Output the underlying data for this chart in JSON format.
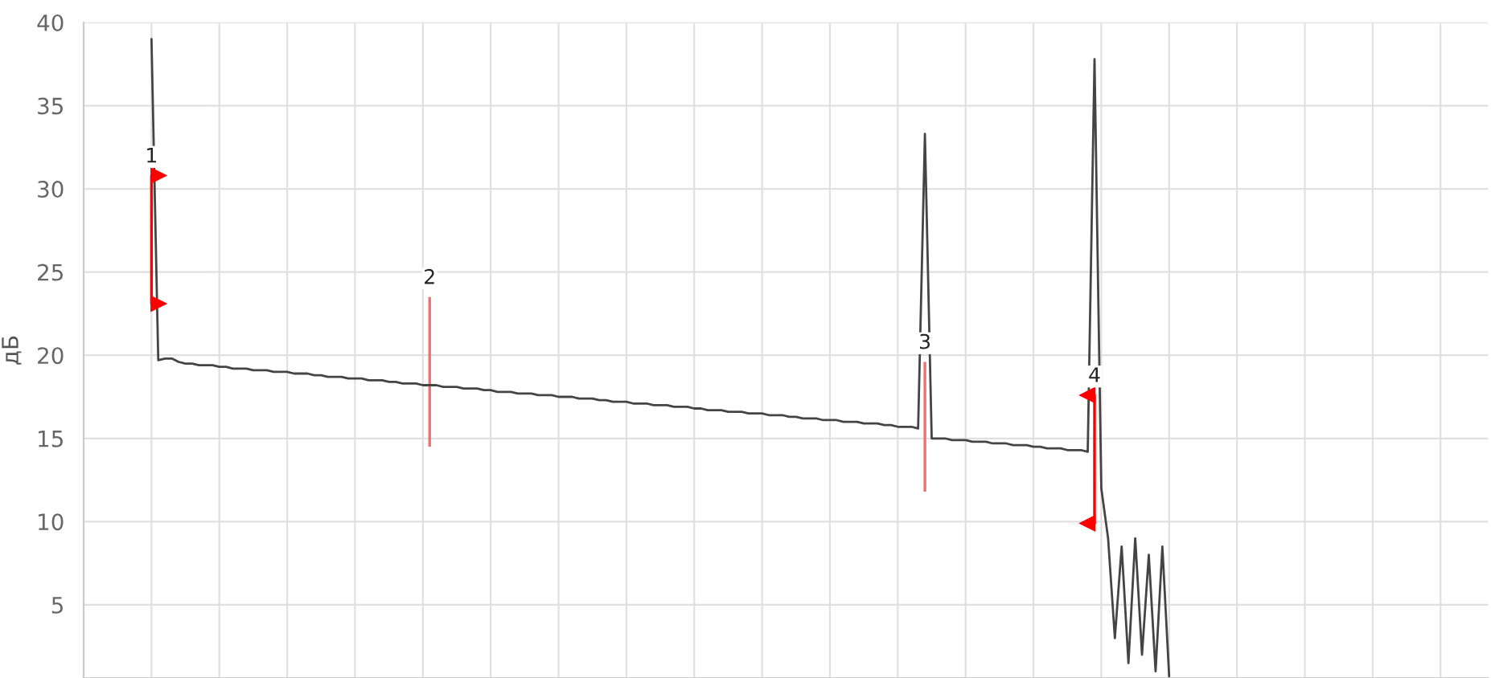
{
  "chart_data": {
    "type": "line",
    "ylabel": "дБ",
    "ylim": [
      0.6,
      40
    ],
    "yticks": [
      5,
      10,
      15,
      20,
      25,
      30,
      35,
      40
    ],
    "grid": true,
    "tick_labels": "y",
    "annotations": [
      "1",
      "2",
      "3",
      "4"
    ],
    "categories": [
      null,
      null,
      null,
      null,
      null,
      null,
      null,
      null,
      null,
      null,
      null,
      null,
      null,
      null,
      null,
      null,
      null,
      null,
      null,
      null,
      null,
      null,
      null,
      null,
      null,
      null,
      null,
      null,
      null,
      null,
      null,
      null,
      null,
      null,
      null,
      null,
      null,
      null,
      null,
      null,
      null,
      null,
      null,
      null,
      null,
      null,
      null,
      null,
      null,
      null,
      null,
      null,
      null,
      null,
      null,
      null,
      null,
      null,
      null,
      null,
      null,
      null,
      null,
      null,
      null,
      null,
      null,
      null,
      null,
      null,
      null,
      null,
      null,
      null,
      null,
      null,
      null,
      null,
      null,
      null,
      null,
      null,
      null,
      null,
      null,
      null,
      null,
      null,
      null,
      null,
      null,
      null,
      null,
      null,
      null,
      null,
      null,
      null,
      null,
      null,
      null,
      null,
      null,
      null,
      null,
      null,
      null,
      null,
      null,
      null,
      null,
      null,
      null,
      null,
      null,
      null,
      null,
      null,
      null,
      null,
      null,
      null,
      null,
      null,
      null,
      null,
      null,
      null,
      null,
      null,
      null,
      null,
      null,
      null,
      null,
      null,
      null,
      null,
      null,
      null,
      null,
      null,
      null,
      null,
      null,
      null,
      null,
      null,
      null,
      null,
      null,
      null,
      null,
      null,
      null,
      null,
      null,
      null,
      null,
      null,
      null,
      null,
      null,
      null,
      null,
      null,
      null,
      null,
      null,
      null,
      null,
      null,
      null,
      null,
      null,
      null,
      null,
      null,
      null,
      null,
      null,
      null,
      null,
      null,
      null,
      null,
      null,
      null,
      null,
      null,
      null,
      null,
      null,
      null,
      null,
      null,
      null,
      null,
      null,
      null,
      null,
      null,
      null,
      null,
      null,
      null,
      null,
      null
    ],
    "series": [
      {
        "color": "#444444",
        "values": [
          null,
          null,
          null,
          null,
          null,
          null,
          null,
          null,
          null,
          null,
          39,
          19.7,
          19.8,
          19.8,
          19.6,
          19.5,
          19.5,
          19.4,
          19.4,
          19.4,
          19.3,
          19.3,
          19.2,
          19.2,
          19.2,
          19.1,
          19.1,
          19.1,
          19.0,
          19.0,
          19.0,
          18.9,
          18.9,
          18.9,
          18.8,
          18.8,
          18.7,
          18.7,
          18.7,
          18.6,
          18.6,
          18.6,
          18.5,
          18.5,
          18.5,
          18.4,
          18.4,
          18.3,
          18.3,
          18.3,
          18.2,
          18.2,
          18.2,
          18.1,
          18.1,
          18.1,
          18.0,
          18.0,
          18.0,
          17.9,
          17.9,
          17.8,
          17.8,
          17.8,
          17.7,
          17.7,
          17.7,
          17.6,
          17.6,
          17.6,
          17.5,
          17.5,
          17.5,
          17.4,
          17.4,
          17.4,
          17.3,
          17.3,
          17.2,
          17.2,
          17.2,
          17.1,
          17.1,
          17.1,
          17.0,
          17.0,
          17.0,
          16.9,
          16.9,
          16.9,
          16.8,
          16.8,
          16.7,
          16.7,
          16.7,
          16.6,
          16.6,
          16.6,
          16.5,
          16.5,
          16.5,
          16.4,
          16.4,
          16.4,
          16.3,
          16.3,
          16.2,
          16.2,
          16.2,
          16.1,
          16.1,
          16.1,
          16.0,
          16.0,
          16.0,
          15.9,
          15.9,
          15.9,
          15.8,
          15.8,
          15.7,
          15.7,
          15.7,
          15.6,
          33.3,
          15.0,
          15.0,
          15.0,
          14.9,
          14.9,
          14.9,
          14.8,
          14.8,
          14.8,
          14.7,
          14.7,
          14.7,
          14.6,
          14.6,
          14.6,
          14.5,
          14.5,
          14.4,
          14.4,
          14.4,
          14.3,
          14.3,
          14.3,
          14.2,
          37.8,
          12,
          9,
          3,
          8.5,
          1.5,
          9,
          2,
          8,
          1,
          8.5,
          0.7,
          null,
          null,
          null,
          null,
          null,
          null,
          null,
          null,
          null,
          null,
          null,
          null,
          null,
          null,
          null,
          null,
          null,
          null,
          null,
          null,
          null,
          null,
          null,
          null,
          null,
          null,
          null,
          null,
          null,
          null,
          null,
          null,
          null,
          null,
          null,
          null,
          null,
          null,
          null,
          null,
          null,
          null,
          null,
          null,
          null,
          null,
          null
        ]
      },
      {
        "values": [
          null,
          null,
          null,
          null,
          null,
          null,
          null,
          null,
          null,
          null,
          7.7,
          null,
          null,
          null,
          null,
          null,
          null,
          null,
          null,
          null,
          null,
          null,
          null,
          null,
          null,
          null,
          null,
          null,
          null,
          null,
          null,
          null,
          null,
          null,
          null,
          null,
          null,
          null,
          null,
          null,
          null,
          null,
          null,
          null,
          null,
          null,
          null,
          null,
          null,
          null,
          null,
          9,
          null,
          null,
          null,
          null,
          null,
          null,
          null,
          null,
          null,
          null,
          null,
          null,
          null,
          null,
          null,
          null,
          null,
          null,
          null,
          null,
          null,
          null,
          null,
          null,
          null,
          null,
          null,
          null,
          null,
          null,
          null,
          null,
          null,
          null,
          null,
          null,
          null,
          null,
          null,
          null,
          null,
          null,
          null,
          null,
          null,
          null,
          null,
          null,
          null,
          null,
          null,
          null,
          null,
          null,
          null,
          null,
          null,
          null,
          null,
          null,
          null,
          null,
          null,
          null,
          null,
          null,
          null,
          null,
          null,
          null,
          null,
          null,
          7.8,
          null,
          null,
          null,
          null,
          null,
          null,
          null,
          null,
          null,
          null,
          null,
          null,
          null,
          null,
          null,
          null,
          null,
          null,
          null,
          null,
          null,
          null,
          null,
          null,
          7.7,
          null,
          null,
          null,
          null,
          null,
          null,
          null,
          null,
          null,
          null,
          null,
          null,
          null,
          null,
          null,
          null,
          null,
          null,
          null,
          null,
          null,
          null,
          null,
          null,
          null,
          null,
          null,
          null,
          null,
          null,
          null,
          null,
          null,
          null,
          null,
          null,
          null,
          null,
          null,
          null,
          null,
          null,
          null,
          null,
          null,
          null,
          null,
          null,
          null,
          null,
          null,
          null,
          null,
          null,
          null,
          null,
          null,
          null
        ],
        "base": [
          null,
          null,
          null,
          null,
          null,
          null,
          null,
          null,
          null,
          null,
          23.1,
          null,
          null,
          null,
          null,
          null,
          null,
          null,
          null,
          null,
          null,
          null,
          null,
          null,
          null,
          null,
          null,
          null,
          null,
          null,
          null,
          null,
          null,
          null,
          null,
          null,
          null,
          null,
          null,
          null,
          null,
          null,
          null,
          null,
          null,
          null,
          null,
          null,
          null,
          null,
          null,
          14.5,
          null,
          null,
          null,
          null,
          null,
          null,
          null,
          null,
          null,
          null,
          null,
          null,
          null,
          null,
          null,
          null,
          null,
          null,
          null,
          null,
          null,
          null,
          null,
          null,
          null,
          null,
          null,
          null,
          null,
          null,
          null,
          null,
          null,
          null,
          null,
          null,
          null,
          null,
          null,
          null,
          null,
          null,
          null,
          null,
          null,
          null,
          null,
          null,
          null,
          null,
          null,
          null,
          null,
          null,
          null,
          null,
          null,
          null,
          null,
          null,
          null,
          null,
          null,
          null,
          null,
          null,
          null,
          null,
          null,
          null,
          null,
          null,
          11.8,
          null,
          null,
          null,
          null,
          null,
          null,
          null,
          null,
          null,
          null,
          null,
          null,
          null,
          null,
          null,
          null,
          null,
          null,
          null,
          null,
          null,
          null,
          null,
          null,
          9.9,
          null,
          null,
          null,
          null,
          null,
          null,
          null,
          null,
          null,
          null,
          null,
          null,
          null,
          null,
          null,
          null,
          null,
          null,
          null,
          null,
          null,
          null,
          null,
          null,
          null,
          null,
          null,
          null,
          null,
          null,
          null,
          null,
          null,
          null,
          null,
          null,
          null,
          null,
          null,
          null,
          null,
          null,
          null,
          null,
          null,
          null,
          null,
          null,
          null,
          null,
          null,
          null,
          null,
          null,
          null,
          null,
          null,
          null
        ],
        "colors": [
          null,
          null,
          null,
          null,
          null,
          null,
          null,
          null,
          null,
          null,
          "#ff0000",
          null,
          null,
          null,
          null,
          null,
          null,
          null,
          null,
          null,
          null,
          null,
          null,
          null,
          null,
          null,
          null,
          null,
          null,
          null,
          null,
          null,
          null,
          null,
          null,
          null,
          null,
          null,
          null,
          null,
          null,
          null,
          null,
          null,
          null,
          null,
          null,
          null,
          null,
          null,
          null,
          "#f07070",
          null,
          null,
          null,
          null,
          null,
          null,
          null,
          null,
          null,
          null,
          null,
          null,
          null,
          null,
          null,
          null,
          null,
          null,
          null,
          null,
          null,
          null,
          null,
          null,
          null,
          null,
          null,
          null,
          null,
          null,
          null,
          null,
          null,
          null,
          null,
          null,
          null,
          null,
          null,
          null,
          null,
          null,
          null,
          null,
          null,
          null,
          null,
          null,
          null,
          null,
          null,
          null,
          null,
          null,
          null,
          null,
          null,
          null,
          null,
          null,
          null,
          null,
          null,
          null,
          null,
          null,
          null,
          null,
          null,
          null,
          null,
          null,
          "#f07070",
          null,
          null,
          null,
          null,
          null,
          null,
          null,
          null,
          null,
          null,
          null,
          null,
          null,
          null,
          null,
          null,
          null,
          null,
          null,
          null,
          null,
          null,
          null,
          null,
          "#ff0000",
          null,
          null,
          null,
          null,
          null,
          null,
          null,
          null,
          null,
          null,
          null,
          null,
          null,
          null,
          null,
          null,
          null,
          null,
          null,
          null,
          null,
          null,
          null,
          null,
          null,
          null,
          null,
          null,
          null,
          null,
          null,
          null,
          null,
          null,
          null,
          null,
          null,
          null,
          null,
          null,
          null,
          null,
          null,
          null,
          null,
          null,
          null,
          null,
          null,
          null,
          null,
          null,
          null,
          null,
          null,
          null,
          null,
          null
        ],
        "type": "bar"
      },
      {
        "type": "scatter",
        "color": "#ff0000",
        "marker": "triangle",
        "values": [
          null,
          null,
          null,
          null,
          null,
          null,
          null,
          null,
          null,
          null,
          null,
          30.8,
          null,
          null,
          null,
          null,
          null,
          null,
          null,
          null,
          null,
          null,
          null,
          null,
          null,
          null,
          null,
          null,
          null,
          null,
          null,
          null,
          null,
          null,
          null,
          null,
          null,
          null,
          null,
          null,
          null,
          null,
          null,
          null,
          null,
          null,
          null,
          null,
          null,
          null,
          null,
          null,
          null,
          null,
          null,
          null,
          null,
          null,
          null,
          null,
          null,
          null,
          null,
          null,
          null,
          null,
          null,
          null,
          null,
          null,
          null,
          null,
          null,
          null,
          null,
          null,
          null,
          null,
          null,
          null,
          null,
          null,
          null,
          null,
          null,
          null,
          null,
          null,
          null,
          null,
          null,
          null,
          null,
          null,
          null,
          null,
          null,
          null,
          null,
          null,
          null,
          null,
          null,
          null,
          null,
          null,
          null,
          null,
          null,
          null,
          null,
          null,
          null,
          null,
          null,
          null,
          null,
          null,
          null,
          null,
          null,
          null,
          null,
          null,
          null,
          null,
          null,
          null,
          null,
          null,
          null,
          null,
          null,
          null,
          null,
          null,
          null,
          null,
          null,
          null,
          null,
          null,
          null,
          null,
          null,
          null,
          null,
          null,
          17.6,
          null,
          null,
          null,
          null,
          null,
          null,
          null,
          null,
          null,
          null,
          null,
          null,
          null,
          null,
          null,
          null,
          null,
          null,
          null,
          null,
          null,
          null,
          null,
          null,
          null,
          null,
          null,
          null,
          null,
          null,
          null,
          null,
          null,
          null,
          null,
          null,
          null,
          null,
          null,
          null,
          null,
          null,
          null,
          null,
          null,
          null,
          null,
          null,
          null,
          null,
          null,
          null,
          null,
          null,
          null,
          null,
          null,
          null,
          null
        ]
      },
      {
        "type": "scatter",
        "color": "#ff0000",
        "marker": "triangle",
        "values": [
          null,
          null,
          null,
          null,
          null,
          null,
          null,
          null,
          null,
          null,
          null,
          23.1,
          null,
          null,
          null,
          null,
          null,
          null,
          null,
          null,
          null,
          null,
          null,
          null,
          null,
          null,
          null,
          null,
          null,
          null,
          null,
          null,
          null,
          null,
          null,
          null,
          null,
          null,
          null,
          null,
          null,
          null,
          null,
          null,
          null,
          null,
          null,
          null,
          null,
          null,
          null,
          null,
          null,
          null,
          null,
          null,
          null,
          null,
          null,
          null,
          null,
          null,
          null,
          null,
          null,
          null,
          null,
          null,
          null,
          null,
          null,
          null,
          null,
          null,
          null,
          null,
          null,
          null,
          null,
          null,
          null,
          null,
          null,
          null,
          null,
          null,
          null,
          null,
          null,
          null,
          null,
          null,
          null,
          null,
          null,
          null,
          null,
          null,
          null,
          null,
          null,
          null,
          null,
          null,
          null,
          null,
          null,
          null,
          null,
          null,
          null,
          null,
          null,
          null,
          null,
          null,
          null,
          null,
          null,
          null,
          null,
          null,
          null,
          null,
          null,
          null,
          null,
          null,
          null,
          null,
          null,
          null,
          null,
          null,
          null,
          null,
          null,
          null,
          null,
          null,
          null,
          null,
          null,
          null,
          null,
          null,
          null,
          null,
          9.9,
          null,
          null,
          null,
          null,
          null,
          null,
          null,
          null,
          null,
          null,
          null,
          null,
          null,
          null,
          null,
          null,
          null,
          null,
          null,
          null,
          null,
          null,
          null,
          null,
          null,
          null,
          null,
          null,
          null,
          null,
          null,
          null,
          null,
          null,
          null,
          null,
          null,
          null,
          null,
          null,
          null,
          null,
          null,
          null,
          null,
          null,
          null,
          null,
          null,
          null,
          null,
          null,
          null,
          null,
          null,
          null,
          null,
          null,
          null
        ]
      }
    ]
  }
}
